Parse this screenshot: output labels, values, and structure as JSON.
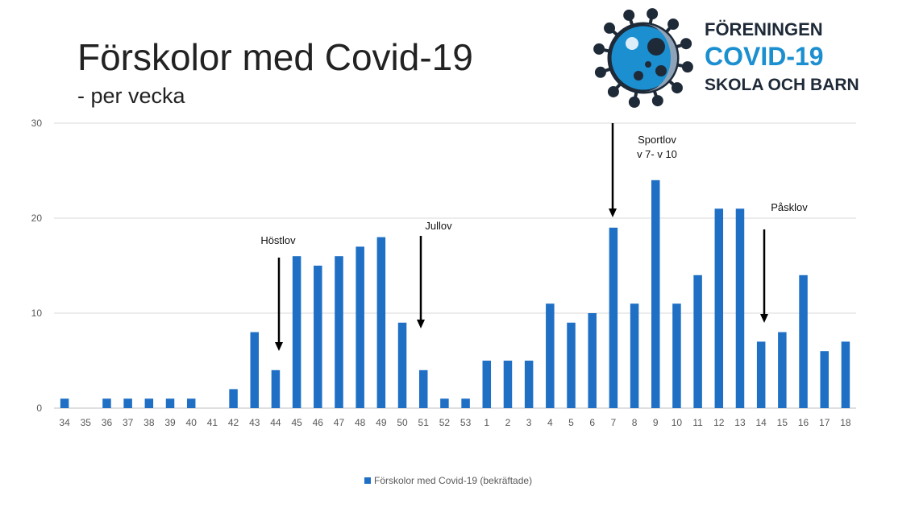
{
  "title": "Förskolor med Covid-19",
  "subtitle": "- per vecka",
  "logo": {
    "line1": "FÖRENINGEN",
    "line2": "COVID-19",
    "line3": "SKOLA OCH BARN",
    "icon": "coronavirus-icon",
    "color_dark": "#1f2a38",
    "color_blue": "#1b8fd0"
  },
  "chart_data": {
    "type": "bar",
    "categories": [
      "34",
      "35",
      "36",
      "37",
      "38",
      "39",
      "40",
      "41",
      "42",
      "43",
      "44",
      "45",
      "46",
      "47",
      "48",
      "49",
      "50",
      "51",
      "52",
      "53",
      "1",
      "2",
      "3",
      "4",
      "5",
      "6",
      "7",
      "8",
      "9",
      "10",
      "11",
      "12",
      "13",
      "14",
      "15",
      "16",
      "17",
      "18"
    ],
    "series": [
      {
        "name": "Förskolor med Covid-19 (bekräftade)",
        "values": [
          1,
          0,
          1,
          1,
          1,
          1,
          1,
          0,
          2,
          8,
          4,
          16,
          15,
          16,
          17,
          18,
          9,
          4,
          1,
          1,
          5,
          5,
          5,
          11,
          9,
          10,
          19,
          11,
          24,
          11,
          14,
          21,
          21,
          7,
          8,
          14,
          6,
          7
        ]
      }
    ],
    "ylim": [
      0,
      30
    ],
    "yticks": [
      0,
      10,
      20,
      30
    ],
    "grid": true,
    "legend": "bottom",
    "bar_color": "#1f6fc5",
    "annotations": [
      {
        "lines": [
          "Höstlov"
        ],
        "category": "44"
      },
      {
        "lines": [
          "Jullov"
        ],
        "category": "51"
      },
      {
        "lines": [
          "Sportlov",
          "v 7- v 10"
        ],
        "category": "7"
      },
      {
        "lines": [
          "Påsklov"
        ],
        "category": "14"
      }
    ]
  }
}
